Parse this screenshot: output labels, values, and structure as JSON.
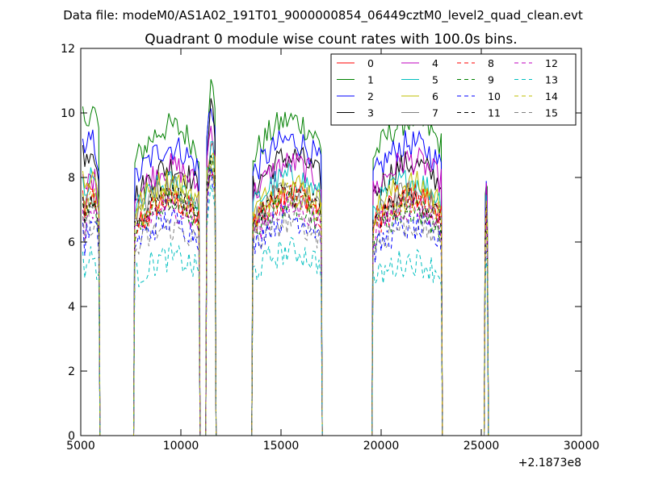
{
  "chart_data": {
    "type": "line",
    "suptitle": "Data file: modeM0/AS1A02_191T01_9000000854_06449cztM0_level2_quad_clean.evt",
    "title": "Quadrant 0 module wise count rates with 100.0s bins.",
    "xlabel": "",
    "ylabel": "",
    "xlim": [
      5000,
      30000
    ],
    "ylim": [
      0,
      12
    ],
    "x_offset_label": "+2.1873e8",
    "x_ticks": [
      5000,
      10000,
      15000,
      20000,
      25000,
      30000
    ],
    "x_tick_labels": [
      "5000",
      "10000",
      "15000",
      "20000",
      "25000",
      "30000"
    ],
    "y_ticks": [
      0,
      2,
      4,
      6,
      8,
      10,
      12
    ],
    "y_tick_labels": [
      "0",
      "2",
      "4",
      "6",
      "8",
      "10",
      "12"
    ],
    "grid": false,
    "legend_placement": "upper-right",
    "segments": [
      {
        "start": 5100,
        "end": 5900
      },
      {
        "start": 7700,
        "end": 10900
      },
      {
        "start": 11300,
        "end": 11700
      },
      {
        "start": 13600,
        "end": 17000
      },
      {
        "start": 19600,
        "end": 23000
      },
      {
        "start": 25200,
        "end": 25300
      }
    ],
    "series": [
      {
        "name": "0",
        "color": "#ff0000",
        "dashed": false,
        "levels": [
          7.2,
          7.0,
          8.6,
          7.3,
          7.2,
          6.9
        ]
      },
      {
        "name": "1",
        "color": "#008000",
        "dashed": false,
        "levels": [
          9.8,
          9.2,
          10.4,
          9.4,
          9.4,
          7.9
        ]
      },
      {
        "name": "2",
        "color": "#0000ff",
        "dashed": false,
        "levels": [
          8.8,
          8.6,
          9.9,
          8.8,
          8.7,
          7.9
        ]
      },
      {
        "name": "3",
        "color": "#000000",
        "dashed": false,
        "levels": [
          8.6,
          8.0,
          9.7,
          8.3,
          8.1,
          7.0
        ]
      },
      {
        "name": "4",
        "color": "#bf00bf",
        "dashed": false,
        "levels": [
          7.7,
          8.0,
          9.2,
          8.1,
          8.2,
          7.4
        ]
      },
      {
        "name": "5",
        "color": "#00bfbf",
        "dashed": false,
        "levels": [
          7.6,
          7.5,
          8.6,
          7.7,
          7.6,
          7.2
        ]
      },
      {
        "name": "6",
        "color": "#bfbf00",
        "dashed": false,
        "levels": [
          7.8,
          7.6,
          8.7,
          7.5,
          7.5,
          6.9
        ]
      },
      {
        "name": "7",
        "color": "#808080",
        "dashed": false,
        "levels": [
          7.1,
          7.4,
          8.3,
          7.2,
          7.2,
          6.6
        ]
      },
      {
        "name": "8",
        "color": "#ff0000",
        "dashed": true,
        "levels": [
          7.0,
          7.0,
          7.9,
          7.1,
          7.0,
          6.6
        ]
      },
      {
        "name": "9",
        "color": "#008000",
        "dashed": true,
        "levels": [
          6.8,
          6.9,
          8.0,
          6.9,
          6.7,
          6.3
        ]
      },
      {
        "name": "10",
        "color": "#0000ff",
        "dashed": true,
        "levels": [
          6.2,
          6.4,
          7.7,
          6.5,
          6.2,
          5.8
        ]
      },
      {
        "name": "11",
        "color": "#000000",
        "dashed": true,
        "levels": [
          7.0,
          7.1,
          8.1,
          7.2,
          7.0,
          6.5
        ]
      },
      {
        "name": "12",
        "color": "#bf00bf",
        "dashed": true,
        "levels": [
          6.6,
          6.8,
          7.9,
          6.8,
          6.8,
          6.4
        ]
      },
      {
        "name": "13",
        "color": "#00bfbf",
        "dashed": true,
        "levels": [
          5.3,
          5.3,
          7.2,
          5.5,
          5.2,
          5.1
        ]
      },
      {
        "name": "14",
        "color": "#bfbf00",
        "dashed": true,
        "levels": [
          7.1,
          7.1,
          8.1,
          7.2,
          7.1,
          6.6
        ]
      },
      {
        "name": "15",
        "color": "#808080",
        "dashed": true,
        "levels": [
          6.4,
          6.2,
          7.8,
          6.4,
          6.3,
          6.0
        ]
      }
    ]
  }
}
